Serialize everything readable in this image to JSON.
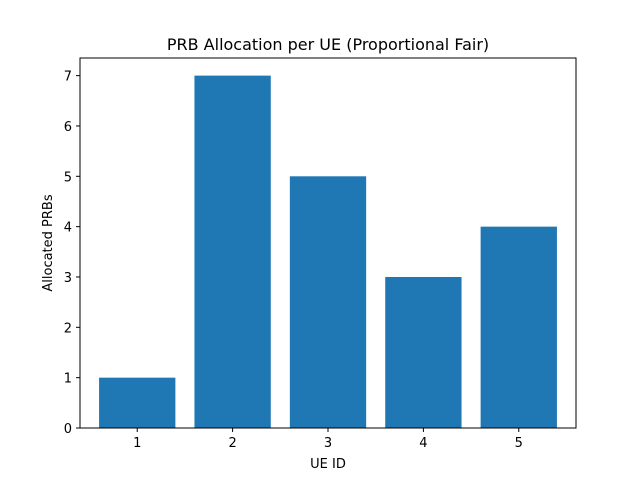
{
  "chart_data": {
    "type": "bar",
    "title": "PRB Allocation per UE (Proportional Fair)",
    "xlabel": "UE ID",
    "ylabel": "Allocated PRBs",
    "categories": [
      "1",
      "2",
      "3",
      "4",
      "5"
    ],
    "values": [
      1,
      7,
      5,
      3,
      4
    ],
    "ylim": [
      0,
      7.35
    ],
    "yticks": [
      0,
      1,
      2,
      3,
      4,
      5,
      6,
      7
    ],
    "grid": false,
    "bar_color": "#1f77b4"
  }
}
